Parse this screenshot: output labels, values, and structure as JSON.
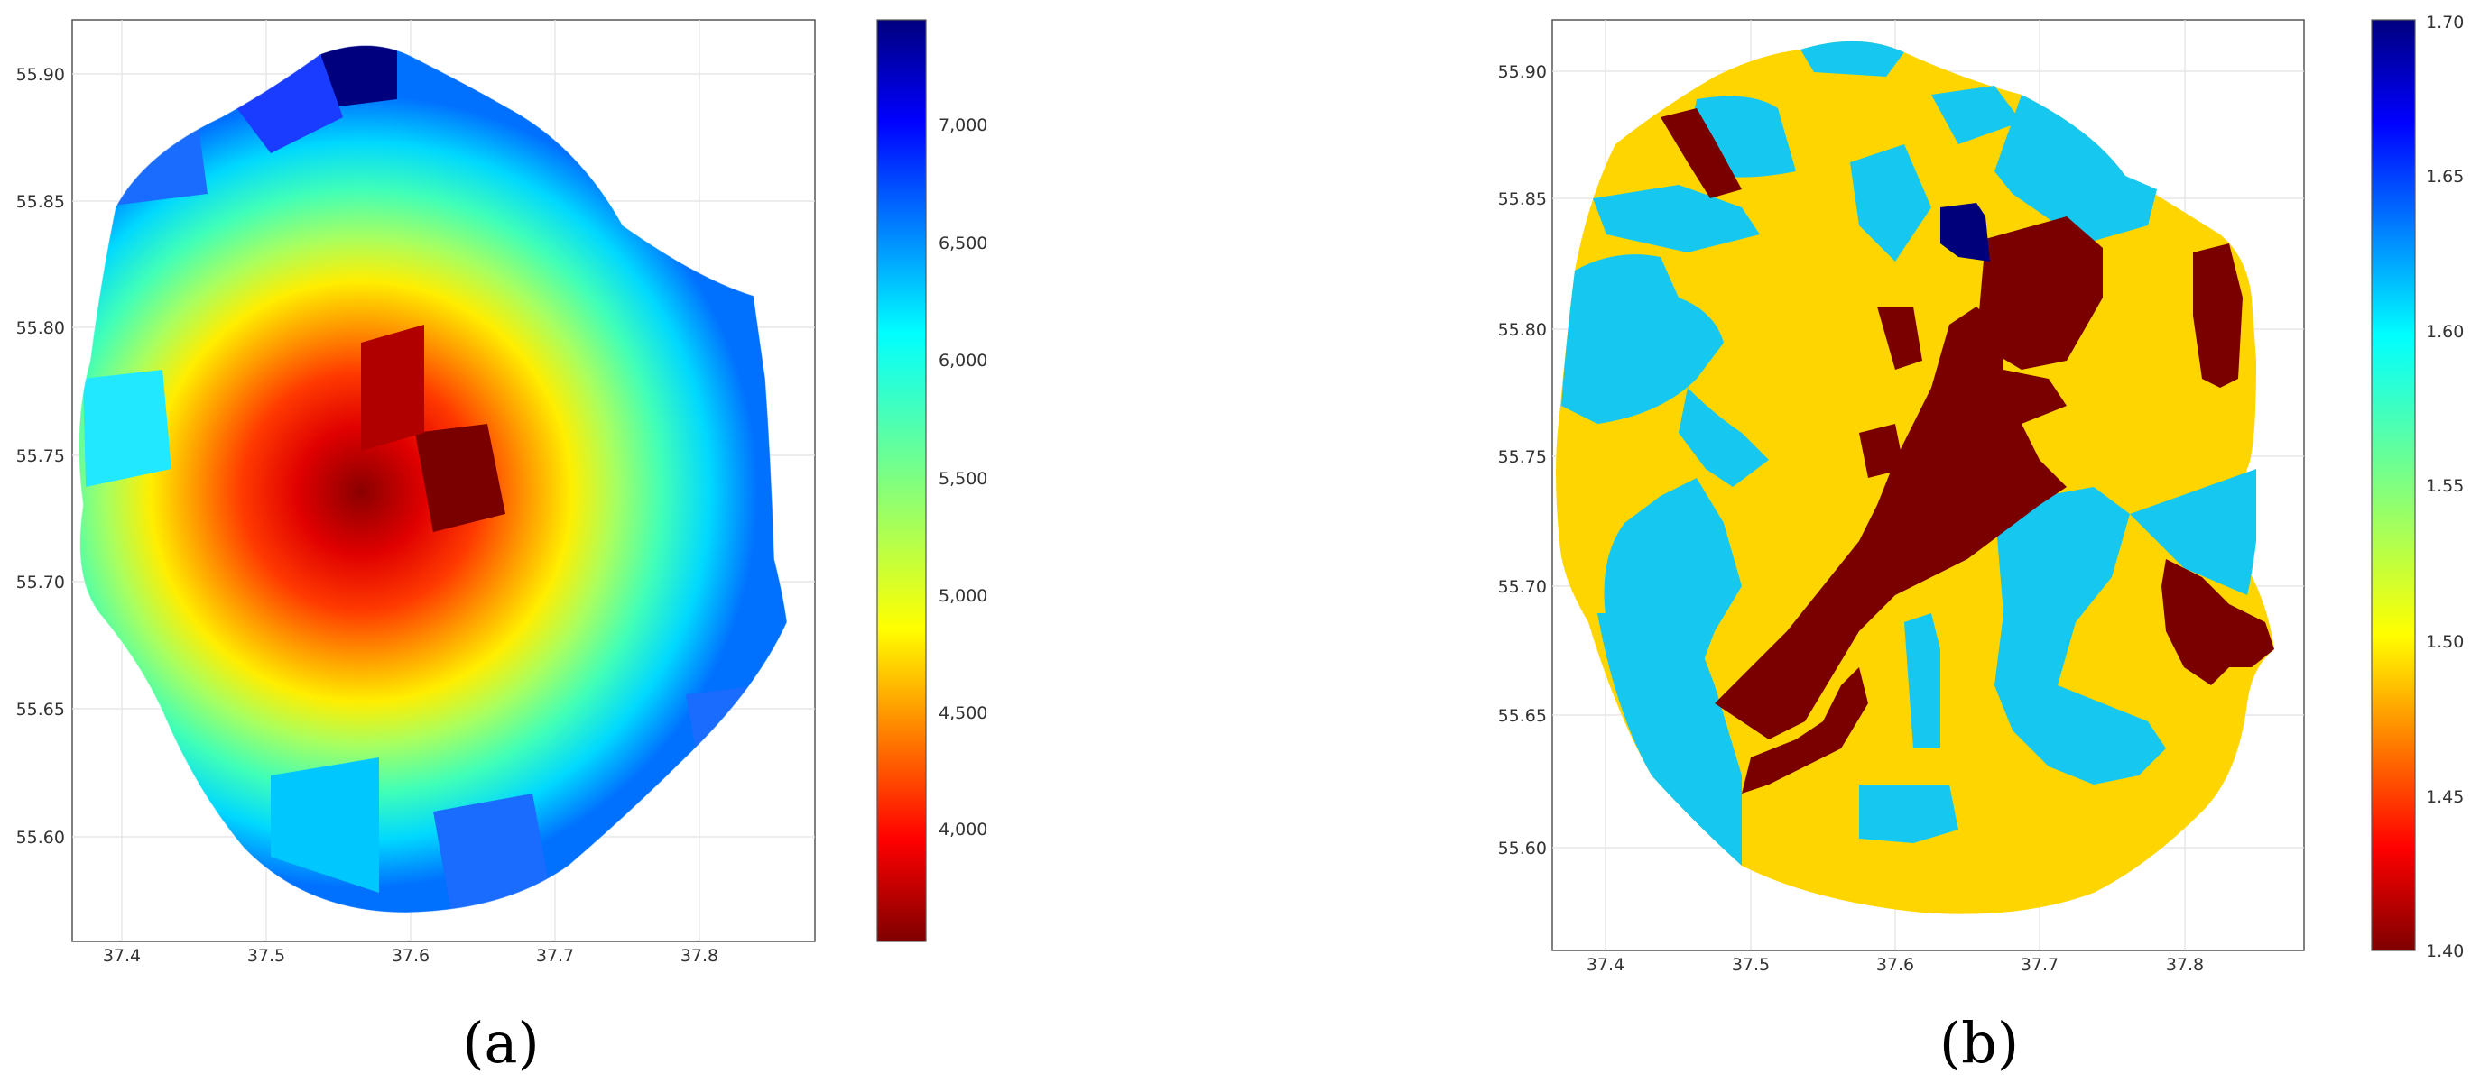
{
  "panels": [
    {
      "id": "a",
      "label": "(a)",
      "map": {
        "xlim": [
          37.365,
          37.885
        ],
        "ylim": [
          55.56,
          55.92
        ],
        "xticks": [
          "37.4",
          "37.5",
          "37.6",
          "37.7",
          "37.8"
        ],
        "yticks": [
          "55.60",
          "55.65",
          "55.70",
          "55.75",
          "55.80",
          "55.85",
          "55.90"
        ],
        "grid": true
      },
      "colorbar": {
        "colormap": "jet",
        "range": [
          3500,
          7450
        ],
        "ticks": [
          "4,000",
          "4,500",
          "5,000",
          "5,500",
          "6,000",
          "6,500",
          "7,000"
        ]
      }
    },
    {
      "id": "b",
      "label": "(b)",
      "map": {
        "xlim": [
          37.365,
          37.885
        ],
        "ylim": [
          55.56,
          55.92
        ],
        "xticks": [
          "37.4",
          "37.5",
          "37.6",
          "37.7",
          "37.8"
        ],
        "yticks": [
          "55.60",
          "55.65",
          "55.70",
          "55.75",
          "55.80",
          "55.85",
          "55.90"
        ],
        "grid": true
      },
      "colorbar": {
        "colormap": "jet",
        "range": [
          1.4,
          1.7
        ],
        "ticks": [
          "1.40",
          "1.45",
          "1.50",
          "1.55",
          "1.60",
          "1.65",
          "1.70"
        ]
      },
      "region_colors": {
        "low": "#7a0000",
        "mid": "#ffd500",
        "high_mid": "#16c8f0",
        "high": "#00007a"
      }
    }
  ]
}
